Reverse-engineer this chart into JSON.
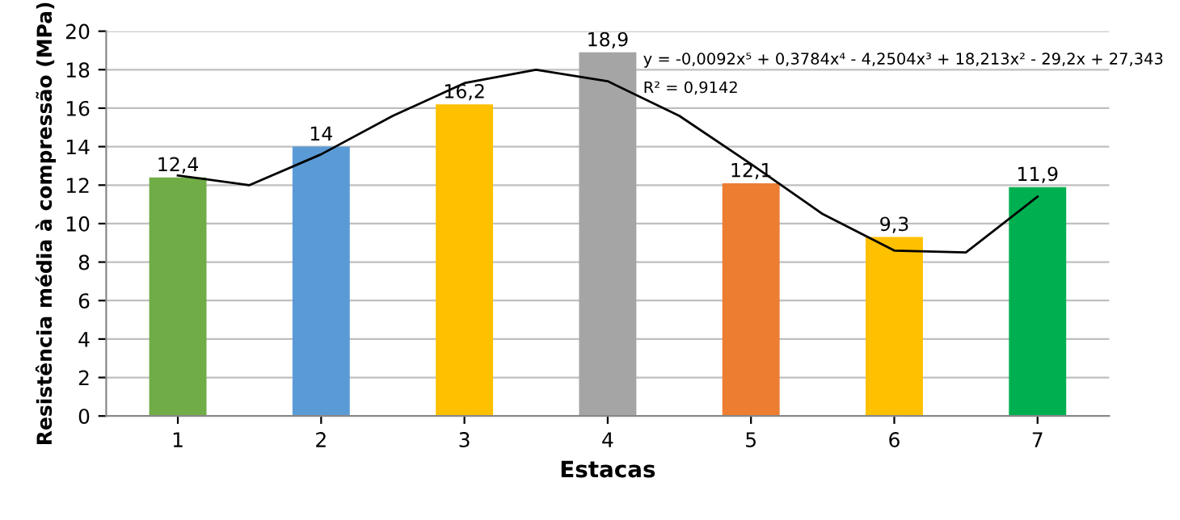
{
  "chart_data": {
    "type": "bar",
    "xlabel": "Estacas",
    "ylabel": "Resistência média à compressão (MPa)",
    "x": [
      1,
      2,
      3,
      4,
      5,
      6,
      7
    ],
    "xlim": [
      0.5,
      7.5
    ],
    "xticks": [
      1,
      2,
      3,
      4,
      5,
      6,
      7
    ],
    "ylim": [
      0,
      20
    ],
    "yticks": [
      0,
      2,
      4,
      6,
      8,
      10,
      12,
      14,
      16,
      18,
      20
    ],
    "grid": "y",
    "legend": false,
    "series": [
      {
        "colors": [
          "#70ad47",
          "#5b9bd5",
          "#ffc000",
          "#a5a5a5",
          "#ed7d31",
          "#ffc000",
          "#00b050"
        ],
        "values": [
          12.4,
          14,
          16.2,
          18.9,
          12.1,
          9.3,
          11.9
        ],
        "value_labels": [
          "12,4",
          "14",
          "16,2",
          "18,9",
          "12,1",
          "9,3",
          "11,9"
        ]
      },
      {
        "type": "line",
        "color": "#000000",
        "x": [
          1,
          1.5,
          2,
          2.5,
          3,
          3.5,
          4,
          4.5,
          5,
          5.5,
          6,
          6.5,
          7
        ],
        "values": [
          12.5,
          12.0,
          13.6,
          15.6,
          17.3,
          18.0,
          17.4,
          15.6,
          13.1,
          10.5,
          8.6,
          8.5,
          11.4
        ]
      }
    ],
    "annotations": [
      "y = -0,0092x⁵ + 0,3784x⁴ - 4,2504x³ + 18,213x² - 29,2x + 27,343",
      "R² = 0,9142"
    ]
  }
}
